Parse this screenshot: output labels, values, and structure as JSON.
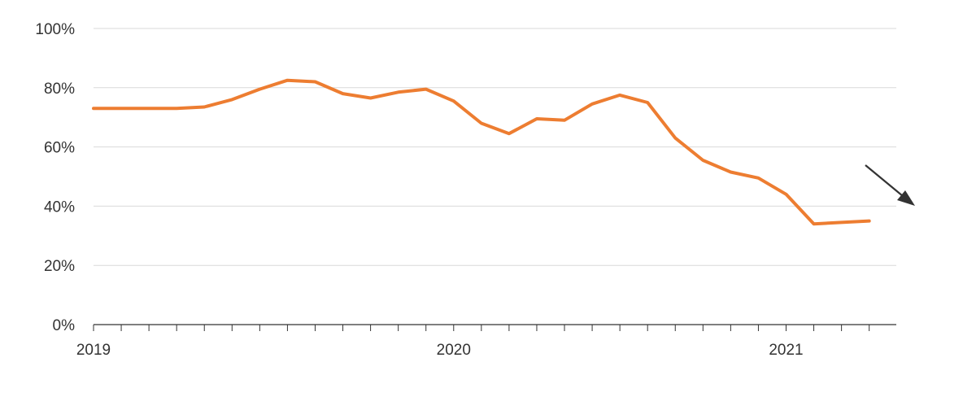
{
  "chart_data": {
    "type": "line",
    "title": "",
    "xlabel": "",
    "ylabel": "",
    "ylim": [
      0,
      100
    ],
    "y_ticks": [
      {
        "value": 0,
        "label": "0%"
      },
      {
        "value": 20,
        "label": "20%"
      },
      {
        "value": 40,
        "label": "40%"
      },
      {
        "value": 60,
        "label": "60%"
      },
      {
        "value": 80,
        "label": "80%"
      },
      {
        "value": 100,
        "label": "100%"
      }
    ],
    "x_tick_labels": [
      {
        "index": 0,
        "label": "2019"
      },
      {
        "index": 13,
        "label": "2020"
      },
      {
        "index": 25,
        "label": "2021"
      }
    ],
    "grid": true,
    "series": [
      {
        "color": "#ed7d31",
        "values": [
          73,
          73,
          73,
          73,
          73.5,
          76,
          79.5,
          82.5,
          82,
          78,
          76.5,
          78.5,
          79.5,
          75.5,
          68,
          64.5,
          69.5,
          69,
          74.5,
          77.5,
          75,
          63,
          55.5,
          51.5,
          49.5,
          44,
          34,
          34.5,
          35
        ]
      }
    ],
    "annotation": {
      "type": "arrow",
      "direction": "down-right",
      "color": "#333333"
    }
  }
}
